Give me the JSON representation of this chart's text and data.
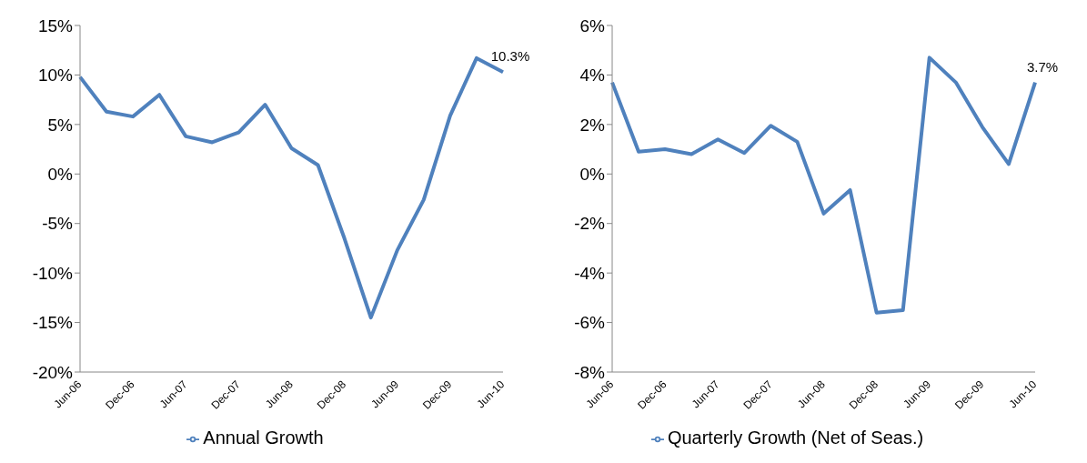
{
  "chart_data": [
    {
      "type": "line",
      "categories": [
        "Jun-06",
        null,
        "Dec-06",
        null,
        "Jun-07",
        null,
        "Dec-07",
        null,
        "Jun-08",
        null,
        "Dec-08",
        null,
        "Jun-09",
        null,
        "Dec-09",
        null,
        "Jun-10"
      ],
      "series": [
        {
          "name": "Annual Growth",
          "color": "#4f81bd",
          "values": [
            9.8,
            6.3,
            5.8,
            8.0,
            3.8,
            3.2,
            4.2,
            7.0,
            2.6,
            0.9,
            -6.5,
            -14.5,
            -7.7,
            -2.6,
            5.9,
            11.7,
            10.3
          ],
          "value_labels": [
            null,
            null,
            null,
            null,
            null,
            null,
            null,
            null,
            null,
            null,
            null,
            null,
            null,
            null,
            null,
            null,
            "10.3%"
          ]
        }
      ],
      "ylim": [
        -20,
        15
      ],
      "yticks": [
        {
          "value": -20,
          "label": "-20%"
        },
        {
          "value": -15,
          "label": "-15%"
        },
        {
          "value": -10,
          "label": "-10%"
        },
        {
          "value": -5,
          "label": "-5%"
        },
        {
          "value": 0,
          "label": "0%"
        },
        {
          "value": 5,
          "label": "5%"
        },
        {
          "value": 10,
          "label": "10%"
        },
        {
          "value": 15,
          "label": "15%"
        }
      ],
      "grid": false,
      "legend": "bottom",
      "marker": "none",
      "line_style": "solid"
    },
    {
      "type": "line",
      "categories": [
        "Jun-06",
        null,
        "Dec-06",
        null,
        "Jun-07",
        null,
        "Dec-07",
        null,
        "Jun-08",
        null,
        "Dec-08",
        null,
        "Jun-09",
        null,
        "Dec-09",
        null,
        "Jun-10"
      ],
      "series": [
        {
          "name": "Quarterly Growth (Net of Seas.)",
          "color": "#4f81bd",
          "values": [
            3.7,
            0.9,
            1.0,
            0.8,
            1.4,
            0.85,
            1.95,
            1.3,
            -1.6,
            -0.65,
            -5.6,
            -5.5,
            4.7,
            3.7,
            1.9,
            0.4,
            3.7
          ],
          "value_labels": [
            null,
            null,
            null,
            null,
            null,
            null,
            null,
            null,
            null,
            null,
            null,
            null,
            null,
            null,
            null,
            null,
            "3.7%"
          ]
        }
      ],
      "ylim": [
        -8,
        6
      ],
      "yticks": [
        {
          "value": -8,
          "label": "-8%"
        },
        {
          "value": -6,
          "label": "-6%"
        },
        {
          "value": -4,
          "label": "-4%"
        },
        {
          "value": -2,
          "label": "-2%"
        },
        {
          "value": 0,
          "label": "0%"
        },
        {
          "value": 2,
          "label": "2%"
        },
        {
          "value": 4,
          "label": "4%"
        },
        {
          "value": 6,
          "label": "6%"
        }
      ],
      "grid": false,
      "legend": "bottom",
      "marker": "none",
      "line_style": "solid"
    }
  ]
}
